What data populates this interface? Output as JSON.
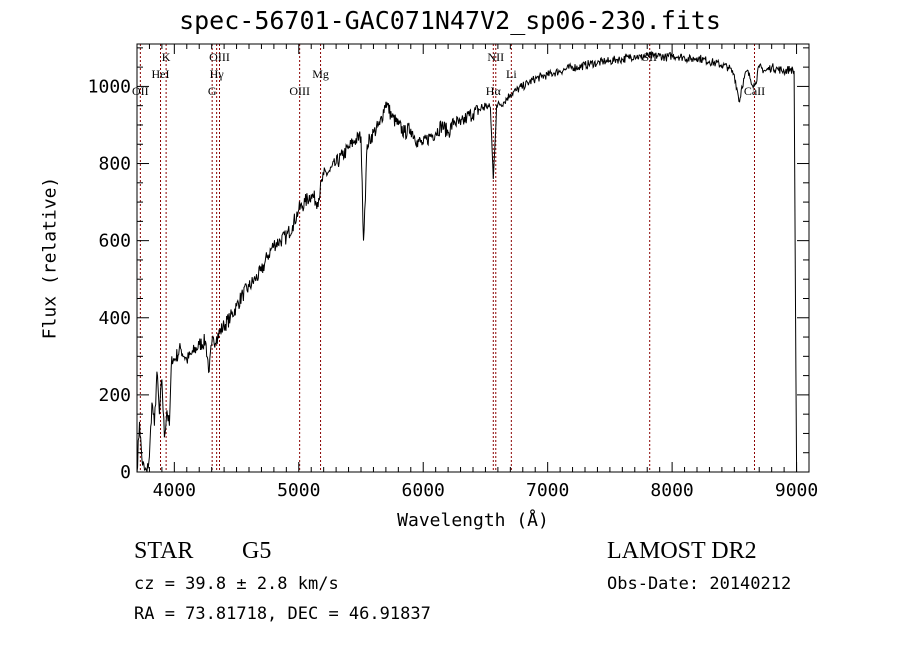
{
  "header": {
    "title": "spec-56701-GAC071N47V2_sp06-230.fits"
  },
  "axes": {
    "xlabel": "Wavelength (Å)",
    "ylabel": "Flux (relative)"
  },
  "info": {
    "object_class": "STAR",
    "subclass": "G5",
    "survey": "LAMOST DR2",
    "cz": "cz = 39.8 ± 2.8 km/s",
    "obs_date": "Obs-Date: 20140212",
    "radec": "RA =  73.81718, DEC =  46.91837"
  },
  "colors": {
    "line_marker": "#8b0000",
    "spectrum": "#000000"
  },
  "chart_data": {
    "type": "line",
    "title": "spec-56701-GAC071N47V2_sp06-230.fits",
    "xlabel": "Wavelength (Å)",
    "ylabel": "Flux (relative)",
    "xlim": [
      3700,
      9100
    ],
    "ylim": [
      0,
      1110
    ],
    "x_ticks": [
      4000,
      5000,
      6000,
      7000,
      8000,
      9000
    ],
    "y_ticks": [
      0,
      200,
      400,
      600,
      800,
      1000
    ],
    "grid": false,
    "series": [
      {
        "x": [
          3700,
          3720,
          3740,
          3760,
          3780,
          3800,
          3820,
          3840,
          3860,
          3880,
          3900,
          3920,
          3940,
          3960,
          3980,
          4000,
          4050,
          4100,
          4150,
          4200,
          4250,
          4280,
          4300,
          4340,
          4400,
          4450,
          4500,
          4550,
          4600,
          4650,
          4700,
          4750,
          4800,
          4850,
          4900,
          4950,
          5000,
          5050,
          5100,
          5150,
          5200,
          5250,
          5300,
          5350,
          5400,
          5450,
          5500,
          5520,
          5550,
          5600,
          5650,
          5700,
          5750,
          5800,
          5850,
          5900,
          5950,
          6000,
          6050,
          6100,
          6150,
          6200,
          6250,
          6300,
          6350,
          6400,
          6450,
          6500,
          6540,
          6563,
          6590,
          6650,
          6700,
          6750,
          6800,
          6850,
          6900,
          6950,
          7000,
          7050,
          7100,
          7150,
          7200,
          7250,
          7300,
          7350,
          7400,
          7450,
          7500,
          7550,
          7600,
          7650,
          7700,
          7750,
          7800,
          7850,
          7900,
          7950,
          8000,
          8050,
          8100,
          8150,
          8200,
          8250,
          8300,
          8350,
          8400,
          8450,
          8500,
          8542,
          8560,
          8600,
          8662,
          8700,
          8750,
          8800,
          8850,
          8900,
          8950,
          8980,
          9000
        ],
        "y": [
          0,
          130,
          30,
          5,
          0,
          40,
          180,
          120,
          260,
          150,
          240,
          90,
          160,
          120,
          300,
          290,
          320,
          290,
          310,
          330,
          340,
          260,
          330,
          350,
          380,
          400,
          430,
          460,
          480,
          500,
          520,
          560,
          590,
          600,
          610,
          640,
          680,
          700,
          720,
          700,
          770,
          780,
          800,
          820,
          840,
          860,
          870,
          600,
          850,
          880,
          900,
          960,
          920,
          900,
          880,
          890,
          860,
          850,
          870,
          880,
          900,
          880,
          910,
          900,
          920,
          930,
          940,
          950,
          945,
          760,
          950,
          960,
          980,
          990,
          1000,
          1010,
          1020,
          1025,
          1030,
          1035,
          1040,
          1045,
          1050,
          1050,
          1055,
          1060,
          1060,
          1065,
          1065,
          1070,
          1070,
          1075,
          1080,
          1075,
          1080,
          1078,
          1080,
          1075,
          1080,
          1078,
          1075,
          1070,
          1075,
          1070,
          1065,
          1060,
          1055,
          1050,
          1030,
          960,
          1000,
          1040,
          1000,
          1050,
          1040,
          1050,
          1045,
          1040,
          1045,
          1040,
          0
        ]
      }
    ],
    "line_markers": [
      {
        "label": "K",
        "x": 3934,
        "row": 0
      },
      {
        "label": "HeI",
        "x": 3889,
        "row": 1
      },
      {
        "label": "OII",
        "x": 3727,
        "row": 2
      },
      {
        "label": "OIII",
        "x": 4363,
        "row": 0
      },
      {
        "label": "Hγ",
        "x": 4340,
        "row": 1
      },
      {
        "label": "G",
        "x": 4304,
        "row": 2
      },
      {
        "label": "Mg",
        "x": 5175,
        "row": 1
      },
      {
        "label": "OIII",
        "x": 5007,
        "row": 2
      },
      {
        "label": "NII",
        "x": 6583,
        "row": 0
      },
      {
        "label": "Li",
        "x": 6708,
        "row": 1
      },
      {
        "label": "Hα",
        "x": 6563,
        "row": 2
      },
      {
        "label": "SII",
        "x": 7820,
        "row": 0
      },
      {
        "label": "CaII",
        "x": 8662,
        "row": 2
      }
    ]
  }
}
